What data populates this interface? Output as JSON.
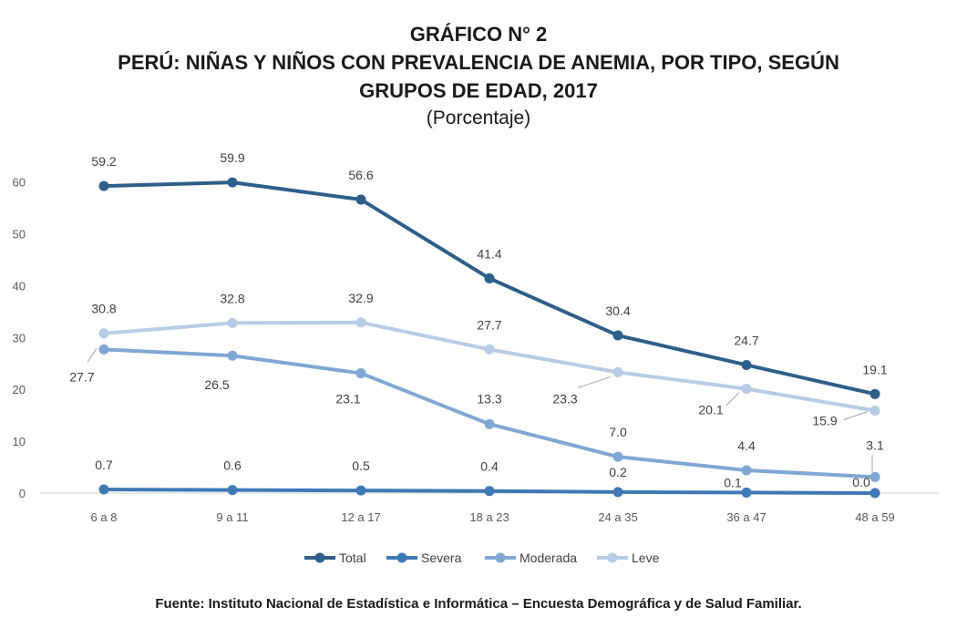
{
  "header": {
    "line1": "GRÁFICO N° 2",
    "line2": "PERÚ: NIÑAS Y NIÑOS CON PREVALENCIA DE ANEMIA, POR TIPO, SEGÚN",
    "line3": "GRUPOS DE EDAD, 2017",
    "subtitle": "(Porcentaje)"
  },
  "source": "Fuente: Instituto Nacional de Estadística e Informática – Encuesta Demográfica y de Salud Familiar.",
  "chart_data": {
    "type": "line",
    "title": "GRÁFICO N° 2 PERÚ: NIÑAS Y NIÑOS CON PREVALENCIA DE ANEMIA, POR TIPO, SEGÚN GRUPOS DE EDAD, 2017",
    "subtitle": "(Porcentaje)",
    "xlabel": "",
    "ylabel": "",
    "categories": [
      "6 a 8",
      "9 a 11",
      "12 a 17",
      "18 a 23",
      "24 a 35",
      "36 a 47",
      "48 a 59"
    ],
    "ylim": [
      0,
      60
    ],
    "yticks": [
      0,
      10,
      20,
      30,
      40,
      50,
      60
    ],
    "grid": false,
    "legend": "bottom",
    "series": [
      {
        "name": "Total",
        "color": "#2e5f8a",
        "values": [
          59.2,
          59.9,
          56.6,
          41.4,
          30.4,
          24.7,
          19.1
        ],
        "labels": [
          "59.2",
          "59.9",
          "56.6",
          "41.4",
          "30.4",
          "24.7",
          "19.1"
        ]
      },
      {
        "name": "Severa",
        "color": "#3f79b5",
        "values": [
          0.7,
          0.6,
          0.5,
          0.4,
          0.2,
          0.1,
          0.0
        ],
        "labels": [
          "0.7",
          "0.6",
          "0.5",
          "0.4",
          "0.2",
          "0.1",
          "0.0"
        ]
      },
      {
        "name": "Moderada",
        "color": "#7fa7d4",
        "values": [
          27.7,
          26.5,
          23.1,
          13.3,
          7.0,
          4.4,
          3.1
        ],
        "labels": [
          "27.7",
          "26.5",
          "23.1",
          "13.3",
          "7.0",
          "4.4",
          "3.1"
        ]
      },
      {
        "name": "Leve",
        "color": "#b7cce6",
        "values": [
          30.8,
          32.8,
          32.9,
          27.7,
          23.3,
          20.1,
          15.9
        ],
        "labels": [
          "30.8",
          "32.8",
          "32.9",
          "27.7",
          "23.3",
          "20.1",
          "15.9"
        ]
      }
    ]
  }
}
